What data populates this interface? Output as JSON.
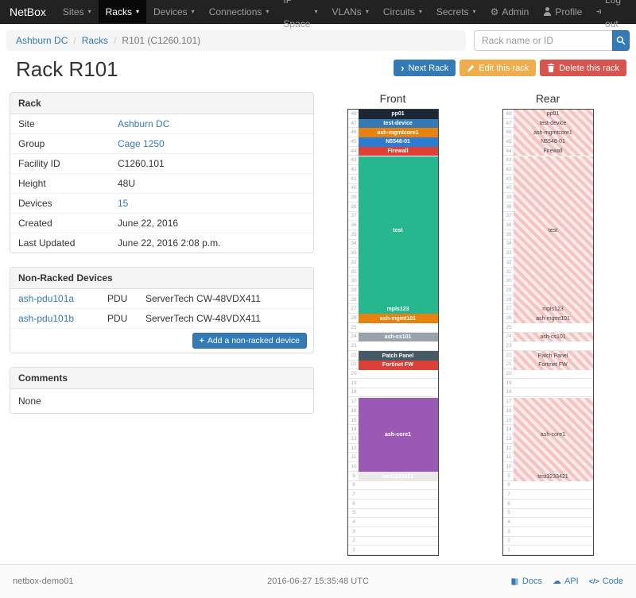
{
  "navbar": {
    "brand": "NetBox",
    "items": [
      {
        "label": "Sites",
        "active": false
      },
      {
        "label": "Racks",
        "active": true
      },
      {
        "label": "Devices",
        "active": false
      },
      {
        "label": "Connections",
        "active": false
      },
      {
        "label": "IP Space",
        "active": false
      },
      {
        "label": "VLANs",
        "active": false
      },
      {
        "label": "Circuits",
        "active": false
      },
      {
        "label": "Secrets",
        "active": false
      }
    ],
    "right_items": [
      {
        "label": "Admin",
        "icon": "gear-icon"
      },
      {
        "label": "Profile",
        "icon": "person-icon"
      },
      {
        "label": "Log out",
        "icon": "logout-icon"
      }
    ]
  },
  "breadcrumb": {
    "items": [
      {
        "label": "Ashburn DC",
        "link": true
      },
      {
        "label": "Racks",
        "link": true
      },
      {
        "label": "R101 (C1260.101)",
        "link": false
      }
    ]
  },
  "search": {
    "placeholder": "Rack name or ID"
  },
  "actions": {
    "next_rack": "Next Rack",
    "edit_rack": "Edit this rack",
    "delete_rack": "Delete this rack"
  },
  "page_title": "Rack R101",
  "rack_panel": {
    "title": "Rack",
    "rows": [
      {
        "label": "Site",
        "value": "Ashburn DC",
        "link": true
      },
      {
        "label": "Group",
        "value": "Cage 1250",
        "link": true
      },
      {
        "label": "Facility ID",
        "value": "C1260.101",
        "link": false
      },
      {
        "label": "Height",
        "value": "48U",
        "link": false
      },
      {
        "label": "Devices",
        "value": "15",
        "link": true
      },
      {
        "label": "Created",
        "value": "June 22, 2016",
        "link": false
      },
      {
        "label": "Last Updated",
        "value": "June 22, 2016 2:08 p.m.",
        "link": false
      }
    ]
  },
  "nonracked_panel": {
    "title": "Non-Racked Devices",
    "rows": [
      {
        "name": "ash-pdu101a",
        "role": "PDU",
        "device_type": "ServerTech CW-48VDX411"
      },
      {
        "name": "ash-pdu101b",
        "role": "PDU",
        "device_type": "ServerTech CW-48VDX411"
      }
    ],
    "add_button": "Add a non-racked device"
  },
  "comments_panel": {
    "title": "Comments",
    "body": "None"
  },
  "elevations": {
    "front_title": "Front",
    "rear_title": "Rear",
    "units_total": 48,
    "devices": [
      {
        "top_unit": 48,
        "u_height": 1,
        "name": "pp01",
        "color": "#1c2733"
      },
      {
        "top_unit": 47,
        "u_height": 1,
        "name": "test-device",
        "color": "#337ab7"
      },
      {
        "top_unit": 46,
        "u_height": 1,
        "name": "ash-mgmtcore1",
        "color": "#e8820e"
      },
      {
        "top_unit": 45,
        "u_height": 1,
        "name": "N5548-01",
        "color": "#2b7cd3"
      },
      {
        "top_unit": 44,
        "u_height": 1,
        "name": "Firewall",
        "color": "#dc4036"
      },
      {
        "top_unit": 43,
        "u_height": 16,
        "name": "test",
        "color": "#27b78f"
      },
      {
        "top_unit": 27,
        "u_height": 1,
        "name": "mpls123",
        "color": "#27b78f"
      },
      {
        "top_unit": 26,
        "u_height": 1,
        "name": "ash-mgmt101",
        "color": "#e8820e"
      },
      {
        "top_unit": 24,
        "u_height": 1,
        "name": "ash-cs101",
        "color": "#9aa3ab"
      },
      {
        "top_unit": 22,
        "u_height": 1,
        "name": "Patch Panel",
        "color": "#455a64"
      },
      {
        "top_unit": 21,
        "u_height": 1,
        "name": "Fortinet FW",
        "color": "#dc4036"
      },
      {
        "top_unit": 17,
        "u_height": 8,
        "name": "ash-core1",
        "color": "#9b59b6"
      },
      {
        "top_unit": 9,
        "u_height": 1,
        "name": "test3233421",
        "color": "#e9e9e9"
      }
    ]
  },
  "footer": {
    "hostname": "netbox-demo01",
    "timestamp": "2016-06-27 15:35:48 UTC",
    "links": [
      {
        "label": "Docs",
        "icon": "book-icon"
      },
      {
        "label": "API",
        "icon": "cloud-icon"
      },
      {
        "label": "Code",
        "icon": "code-icon"
      }
    ]
  },
  "colors": {
    "accent": "#337ab7",
    "warning": "#f0ad4e",
    "danger": "#d9534f",
    "navbar_bg": "#222222"
  }
}
